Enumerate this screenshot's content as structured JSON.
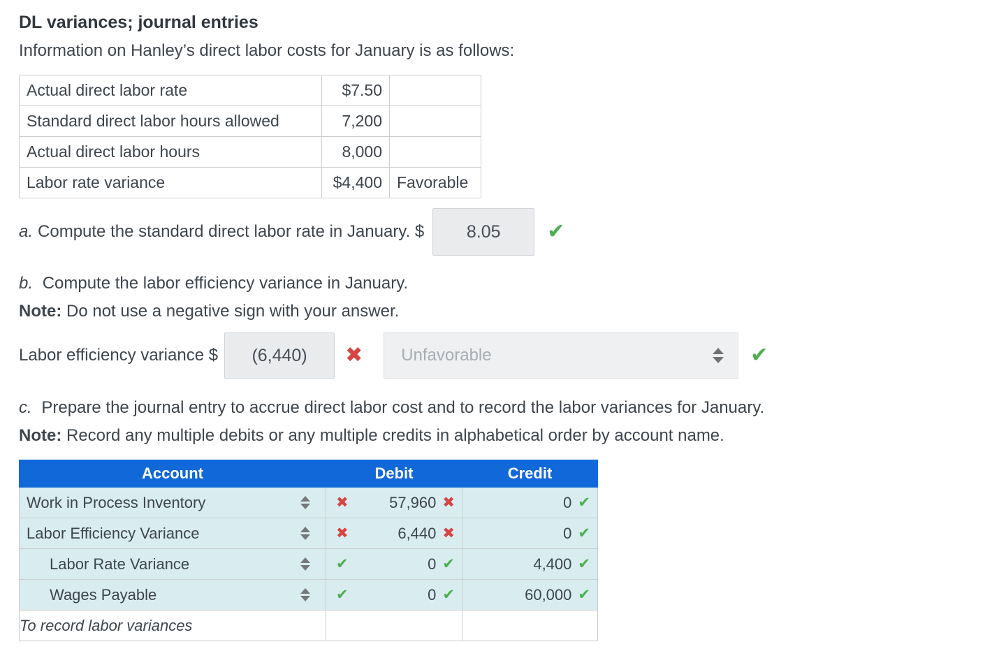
{
  "title": "DL variances; journal entries",
  "intro": "Information on Hanley’s direct labor costs for January is as follows:",
  "icons": {
    "check": "✔",
    "cross": "✖"
  },
  "colors": {
    "header_blue": "#1168d8",
    "row_light_blue": "#d9edf1",
    "check_green": "#4caf50",
    "cross_red": "#d64541",
    "input_gray": "#e9ebed"
  },
  "info_table": {
    "rows": [
      {
        "label": "Actual direct labor rate",
        "value": "$7.50",
        "note": ""
      },
      {
        "label": "Standard direct labor hours allowed",
        "value": "7,200",
        "note": ""
      },
      {
        "label": "Actual direct labor hours",
        "value": "8,000",
        "note": ""
      },
      {
        "label": "Labor rate variance",
        "value": "$4,400",
        "note": "Favorable"
      }
    ]
  },
  "part_a": {
    "letter": "a.",
    "text": "Compute the standard direct labor rate in January. $",
    "answer": "8.05",
    "status": "correct"
  },
  "part_b": {
    "letter": "b.",
    "text": "Compute the labor efficiency variance in January.",
    "note_label": "Note:",
    "note_text": "Do not use a negative sign with your answer.",
    "input_label": "Labor efficiency variance $",
    "answer": "(6,440)",
    "answer_status": "incorrect",
    "dropdown_value": "Unfavorable",
    "dropdown_status": "correct"
  },
  "part_c": {
    "letter": "c.",
    "text": "Prepare the journal entry to accrue direct labor cost and to record the labor variances for January.",
    "note_label": "Note:",
    "note_text": "Record any multiple debits or any multiple credits in alphabetical order by account name."
  },
  "journal": {
    "headers": {
      "account": "Account",
      "debit": "Debit",
      "credit": "Credit"
    },
    "rows": [
      {
        "account": "Work in Process Inventory",
        "indent": false,
        "debit_cell_mark": "cross",
        "debit": "57,960",
        "debit_value_mark": "cross",
        "credit": "0",
        "credit_value_mark": "check"
      },
      {
        "account": "Labor Efficiency Variance",
        "indent": false,
        "debit_cell_mark": "cross",
        "debit": "6,440",
        "debit_value_mark": "cross",
        "credit": "0",
        "credit_value_mark": "check"
      },
      {
        "account": "Labor Rate Variance",
        "indent": true,
        "debit_cell_mark": "check",
        "debit": "0",
        "debit_value_mark": "check",
        "credit": "4,400",
        "credit_value_mark": "check"
      },
      {
        "account": "Wages Payable",
        "indent": true,
        "debit_cell_mark": "check",
        "debit": "0",
        "debit_value_mark": "check",
        "credit": "60,000",
        "credit_value_mark": "check"
      }
    ],
    "memo": "To record labor variances"
  }
}
